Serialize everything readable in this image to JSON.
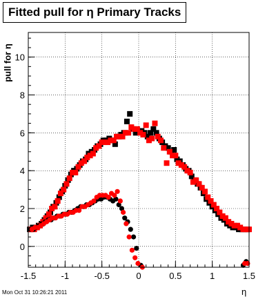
{
  "chart_data": {
    "type": "scatter",
    "title": "Fitted pull for η  Primary Tracks",
    "xlabel": "η",
    "ylabel": "pull for η",
    "xlim": [
      -1.5,
      1.5
    ],
    "ylim": [
      -1.1,
      11.3
    ],
    "xticks": [
      -1.5,
      -1,
      -0.5,
      0,
      0.5,
      1,
      1.5
    ],
    "xtick_labels": [
      "-1.5",
      "-1",
      "-0.5",
      "0",
      "0.5",
      "1",
      "1.5"
    ],
    "yticks": [
      0,
      2,
      4,
      6,
      8,
      10
    ],
    "ytick_labels": [
      "0",
      "2",
      "4",
      "6",
      "8",
      "10"
    ],
    "grid": true,
    "series": [
      {
        "marker": "square",
        "color": "#000000",
        "x": [
          -1.48,
          -1.44,
          -1.4,
          -1.36,
          -1.32,
          -1.28,
          -1.24,
          -1.2,
          -1.16,
          -1.12,
          -1.08,
          -1.04,
          -1.0,
          -0.96,
          -0.92,
          -0.88,
          -0.84,
          -0.8,
          -0.76,
          -0.72,
          -0.68,
          -0.64,
          -0.6,
          -0.56,
          -0.52,
          -0.48,
          -0.44,
          -0.4,
          -0.36,
          -0.32,
          -0.28,
          -0.24,
          -0.2,
          -0.16,
          -0.12,
          -0.08,
          -0.04,
          0.0,
          0.04,
          0.08,
          0.12,
          0.16,
          0.2,
          0.24,
          0.28,
          0.32,
          0.36,
          0.4,
          0.44,
          0.48,
          0.52,
          0.56,
          0.6,
          0.64,
          0.68,
          0.72,
          0.76,
          0.8,
          0.84,
          0.88,
          0.92,
          0.96,
          1.0,
          1.04,
          1.08,
          1.12,
          1.16,
          1.2,
          1.24,
          1.28,
          1.32,
          1.36,
          1.4,
          1.44,
          1.48
        ],
        "y": [
          0.9,
          1.0,
          1.0,
          1.1,
          1.2,
          1.4,
          1.6,
          1.8,
          2.1,
          2.3,
          2.6,
          2.9,
          3.2,
          3.5,
          3.8,
          4.0,
          4.1,
          4.3,
          4.5,
          4.6,
          4.9,
          5.0,
          5.1,
          5.3,
          5.4,
          5.6,
          5.6,
          5.7,
          5.6,
          5.4,
          5.8,
          5.9,
          6.0,
          6.6,
          7.0,
          6.2,
          6.0,
          6.1,
          6.1,
          6.0,
          5.8,
          6.0,
          6.2,
          6.0,
          5.7,
          5.5,
          5.3,
          5.2,
          5.0,
          5.1,
          4.6,
          4.5,
          4.3,
          4.1,
          4.0,
          3.7,
          3.5,
          3.3,
          3.1,
          2.8,
          2.5,
          2.3,
          2.1,
          1.9,
          1.7,
          1.5,
          1.4,
          1.2,
          1.1,
          1.0,
          1.0,
          0.9,
          0.9,
          0.9,
          0.9
        ]
      },
      {
        "marker": "square",
        "color": "#ff0000",
        "x": [
          -1.46,
          -1.42,
          -1.38,
          -1.34,
          -1.3,
          -1.26,
          -1.22,
          -1.18,
          -1.14,
          -1.1,
          -1.06,
          -1.02,
          -0.98,
          -0.94,
          -0.9,
          -0.86,
          -0.82,
          -0.78,
          -0.74,
          -0.7,
          -0.66,
          -0.62,
          -0.58,
          -0.54,
          -0.5,
          -0.46,
          -0.42,
          -0.38,
          -0.34,
          -0.3,
          -0.26,
          -0.22,
          -0.18,
          -0.14,
          -0.1,
          -0.06,
          -0.02,
          0.02,
          0.06,
          0.1,
          0.14,
          0.18,
          0.22,
          0.26,
          0.3,
          0.34,
          0.38,
          0.42,
          0.46,
          0.5,
          0.54,
          0.58,
          0.62,
          0.66,
          0.7,
          0.74,
          0.78,
          0.82,
          0.86,
          0.9,
          0.94,
          0.98,
          1.02,
          1.06,
          1.1,
          1.14,
          1.18,
          1.22,
          1.26,
          1.3,
          1.34,
          1.38,
          1.42,
          1.46,
          1.5
        ],
        "y": [
          0.9,
          0.9,
          1.0,
          1.1,
          1.3,
          1.5,
          1.7,
          2.0,
          2.1,
          2.4,
          2.8,
          3.0,
          3.3,
          3.6,
          3.9,
          3.9,
          4.2,
          4.4,
          4.5,
          4.7,
          4.8,
          4.9,
          5.2,
          5.3,
          5.5,
          5.5,
          5.5,
          5.6,
          5.6,
          5.8,
          5.8,
          5.8,
          6.0,
          6.0,
          6.3,
          6.2,
          6.2,
          6.0,
          5.9,
          6.4,
          5.6,
          5.7,
          6.5,
          5.8,
          5.6,
          5.2,
          4.4,
          5.0,
          4.8,
          4.8,
          4.4,
          4.3,
          4.2,
          4.0,
          3.9,
          3.4,
          3.5,
          3.3,
          3.1,
          2.9,
          2.6,
          2.4,
          2.2,
          2.0,
          1.8,
          1.6,
          1.5,
          1.3,
          1.2,
          1.1,
          1.1,
          1.0,
          0.9,
          0.9,
          0.9
        ]
      },
      {
        "marker": "circle",
        "color": "#000000",
        "x": [
          -1.47,
          -1.43,
          -1.39,
          -1.35,
          -1.31,
          -1.27,
          -1.23,
          -1.19,
          -1.15,
          -1.11,
          -1.07,
          -1.03,
          -0.99,
          -0.95,
          -0.91,
          -0.87,
          -0.83,
          -0.79,
          -0.75,
          -0.71,
          -0.67,
          -0.63,
          -0.59,
          -0.55,
          -0.51,
          -0.47,
          -0.43,
          -0.39,
          -0.35,
          -0.31,
          -0.27,
          -0.23,
          -0.19,
          -0.15,
          -0.11,
          -0.07,
          -0.03,
          0.03,
          1.42,
          1.46
        ],
        "y": [
          0.9,
          0.9,
          1.0,
          1.1,
          1.2,
          1.3,
          1.4,
          1.4,
          1.5,
          1.6,
          1.6,
          1.7,
          1.7,
          1.8,
          1.8,
          1.9,
          2.0,
          2.1,
          2.1,
          2.2,
          2.2,
          2.3,
          2.4,
          2.5,
          2.5,
          2.6,
          2.6,
          2.5,
          2.4,
          2.5,
          2.2,
          2.0,
          1.5,
          1.3,
          0.9,
          0.5,
          -0.1,
          -1.0,
          -1.0,
          -0.8
        ]
      },
      {
        "marker": "circle",
        "color": "#ff0000",
        "x": [
          -1.45,
          -1.41,
          -1.37,
          -1.33,
          -1.29,
          -1.25,
          -1.21,
          -1.17,
          -1.13,
          -1.09,
          -1.05,
          -1.01,
          -0.97,
          -0.93,
          -0.89,
          -0.85,
          -0.81,
          -0.77,
          -0.73,
          -0.69,
          -0.65,
          -0.61,
          -0.57,
          -0.53,
          -0.49,
          -0.45,
          -0.41,
          -0.37,
          -0.33,
          -0.29,
          -0.25,
          -0.21,
          -0.17,
          -0.13,
          -0.09,
          -0.05,
          -0.01,
          0.05,
          1.44,
          1.48
        ],
        "y": [
          0.9,
          1.0,
          1.0,
          1.1,
          1.2,
          1.3,
          1.4,
          1.5,
          1.5,
          1.6,
          1.6,
          1.7,
          1.7,
          1.8,
          1.8,
          1.9,
          1.9,
          2.1,
          2.1,
          2.2,
          2.3,
          2.4,
          2.6,
          2.7,
          2.7,
          2.7,
          2.6,
          2.8,
          2.7,
          2.9,
          2.4,
          1.8,
          1.2,
          0.5,
          -0.2,
          -0.6,
          -0.9,
          -1.1,
          -0.9,
          -0.9
        ]
      }
    ]
  },
  "footer_text": "Mon Oct 31 10:26:21 2011"
}
